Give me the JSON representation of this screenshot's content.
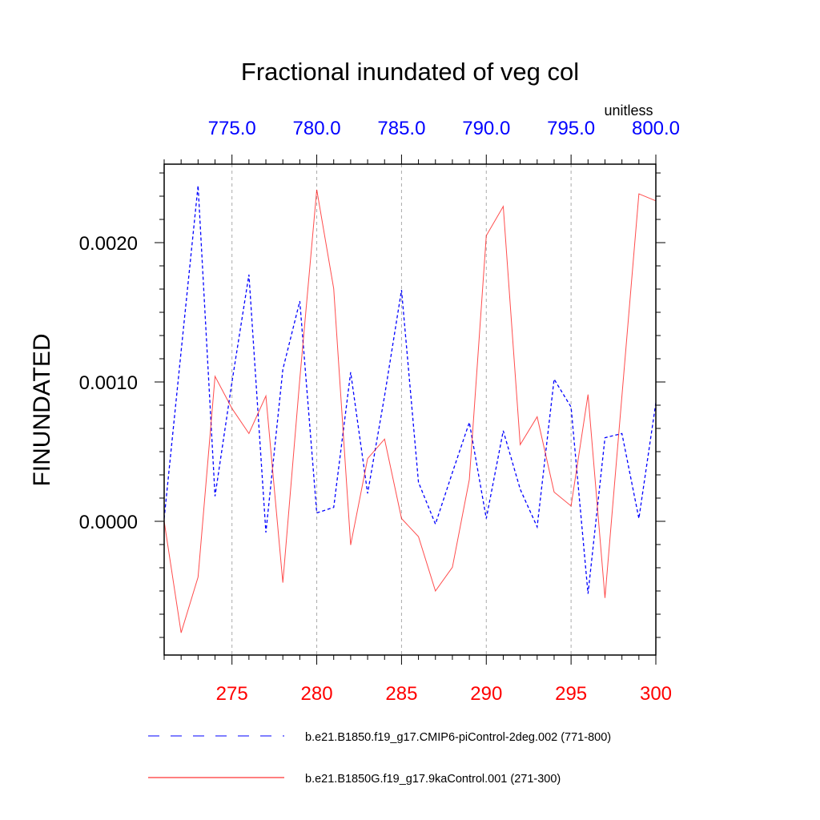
{
  "chart_data": {
    "type": "line",
    "title": "Fractional inundated of veg col",
    "units": "unitless",
    "ylabel": "FINUNDATED",
    "xlabel": "",
    "ylim": [
      -0.00096,
      0.00256
    ],
    "xlim": [
      271,
      300
    ],
    "xlim_top": [
      771,
      800
    ],
    "yticks": [
      0.0,
      0.001,
      0.002
    ],
    "ytick_labels": [
      "0.0000",
      "0.0010",
      "0.0020"
    ],
    "xticks_bottom": [
      275,
      280,
      285,
      290,
      295,
      300
    ],
    "xtick_labels_bottom": [
      "275",
      "280",
      "285",
      "290",
      "295",
      "300"
    ],
    "xticks_top": [
      775,
      780,
      785,
      790,
      795,
      800
    ],
    "xtick_labels_top": [
      "775.0",
      "780.0",
      "785.0",
      "790.0",
      "795.0",
      "800.0"
    ],
    "grid": "vertical dashed at major bottom ticks",
    "legend_position": "bottom",
    "x": [
      271,
      272,
      273,
      274,
      275,
      276,
      277,
      278,
      279,
      280,
      281,
      282,
      283,
      284,
      285,
      286,
      287,
      288,
      289,
      290,
      291,
      292,
      293,
      294,
      295,
      296,
      297,
      298,
      299,
      300
    ],
    "series": [
      {
        "name": "b.e21.B1850.f19_g17.CMIP6-piControl-2deg.002 (771-800)",
        "color": "#0000ff",
        "style": "dashed",
        "values": [
          2e-05,
          0.00122,
          0.00241,
          0.00018,
          0.001,
          0.00177,
          -8e-05,
          0.00109,
          0.00158,
          6e-05,
          0.0001,
          0.00107,
          0.0002,
          0.0009,
          0.00166,
          0.00028,
          -2e-05,
          0.00035,
          0.00071,
          2e-05,
          0.00065,
          0.00023,
          -4e-05,
          0.00102,
          0.00082,
          -0.00052,
          0.0006,
          0.00063,
          2e-05,
          0.00085
        ]
      },
      {
        "name": "b.e21.B1850G.f19_g17.9kaControl.001 (271-300)",
        "color": "#ff0000",
        "style": "solid",
        "values": [
          0.0,
          -0.0008,
          -0.0004,
          0.00104,
          0.00081,
          0.00063,
          0.0009,
          -0.00044,
          0.00102,
          0.00238,
          0.00167,
          -0.00017,
          0.00045,
          0.00059,
          2e-05,
          -0.00011,
          -0.0005,
          -0.00033,
          0.0003,
          0.00205,
          0.00226,
          0.00055,
          0.00075,
          0.00021,
          0.00011,
          0.00091,
          -0.00055,
          0.0009,
          0.00235,
          0.0023
        ]
      }
    ]
  }
}
